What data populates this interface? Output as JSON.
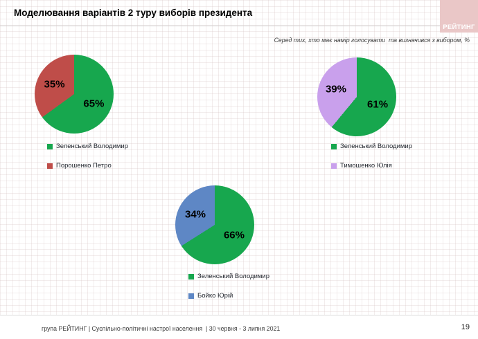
{
  "header": {
    "title": "Моделювання варіантів 2 туру виборів президента",
    "logo_text": "РЕЙТИНГ",
    "subtitle": "Серед тих, хто має намір голосувати  та визначився з вибором, %"
  },
  "chart_data": [
    {
      "type": "pie",
      "slices": [
        {
          "label": "Зеленський Володимир",
          "value": 65,
          "pct_label": "65%",
          "color": "#17a74e"
        },
        {
          "label": "Порошенко Петро",
          "value": 35,
          "pct_label": "35%",
          "color": "#bf4d49"
        }
      ]
    },
    {
      "type": "pie",
      "slices": [
        {
          "label": "Зеленський Володимир",
          "value": 61,
          "pct_label": "61%",
          "color": "#17a74e"
        },
        {
          "label": "Тимошенко Юлія",
          "value": 39,
          "pct_label": "39%",
          "color": "#c9a0ec"
        }
      ]
    },
    {
      "type": "pie",
      "slices": [
        {
          "label": "Зеленський Володимир",
          "value": 66,
          "pct_label": "66%",
          "color": "#17a74e"
        },
        {
          "label": "Бойко Юрій",
          "value": 34,
          "pct_label": "34%",
          "color": "#5e87c5"
        }
      ]
    }
  ],
  "footer": {
    "text": "група РЕЙТИНГ | Суспільно-політичні настрої населення  | 30 червня - 3 липня 2021",
    "page_number": "19"
  }
}
